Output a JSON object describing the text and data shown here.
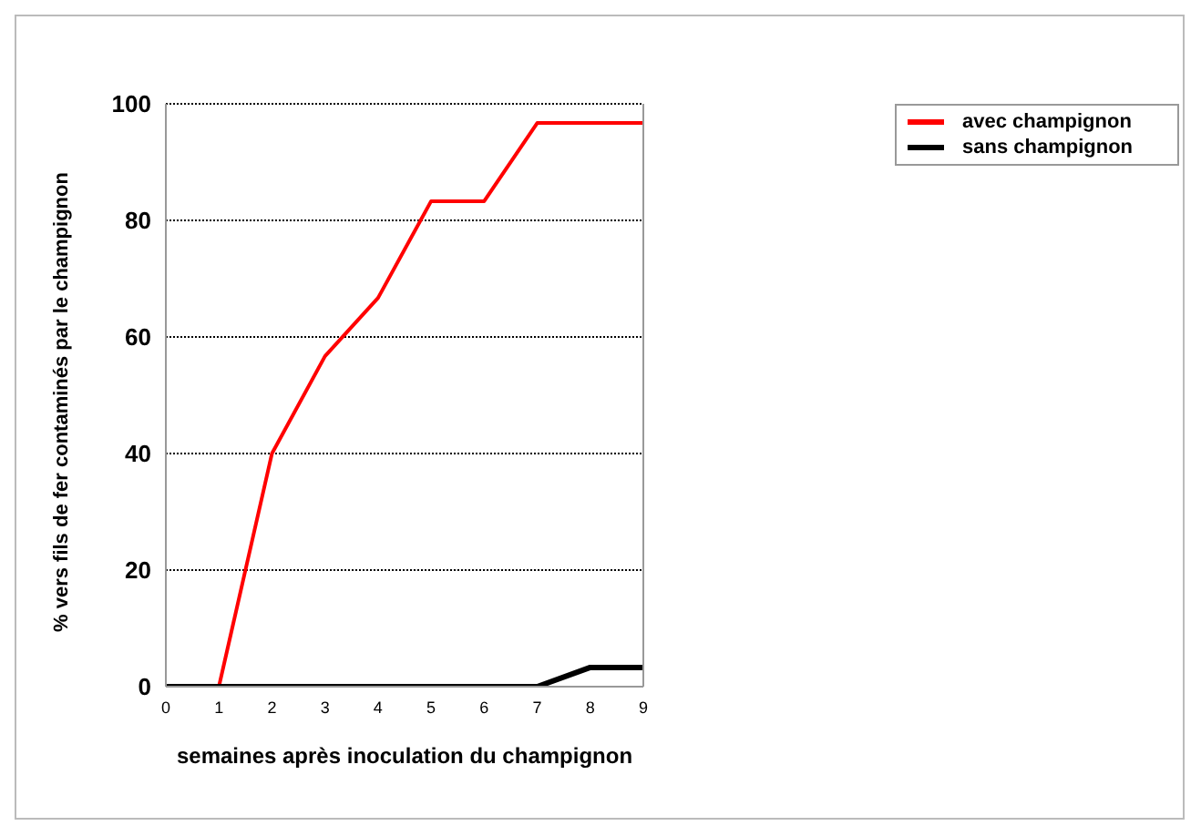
{
  "chart_data": {
    "type": "line",
    "xlabel": "semaines après inoculation du champignon",
    "ylabel": "% vers fils de fer contaminés par le champignon",
    "x": [
      0,
      1,
      2,
      3,
      4,
      5,
      6,
      7,
      8,
      9
    ],
    "series": [
      {
        "name": "avec champignon",
        "color": "#ff0000",
        "values": [
          0,
          0,
          40,
          56.7,
          66.7,
          83.3,
          83.3,
          96.7,
          96.7,
          96.7
        ]
      },
      {
        "name": "sans champignon",
        "color": "#000000",
        "values": [
          0,
          0,
          0,
          0,
          0,
          0,
          0,
          0,
          3.3,
          3.3
        ]
      }
    ],
    "xlim": [
      0,
      9
    ],
    "xticks": [
      0,
      1,
      2,
      3,
      4,
      5,
      6,
      7,
      8,
      9
    ],
    "ylim": [
      0,
      100
    ],
    "yticks": [
      0,
      20,
      40,
      60,
      80,
      100
    ],
    "grid": "y",
    "legend": "top right",
    "marker": "none",
    "line_style": "solid"
  }
}
